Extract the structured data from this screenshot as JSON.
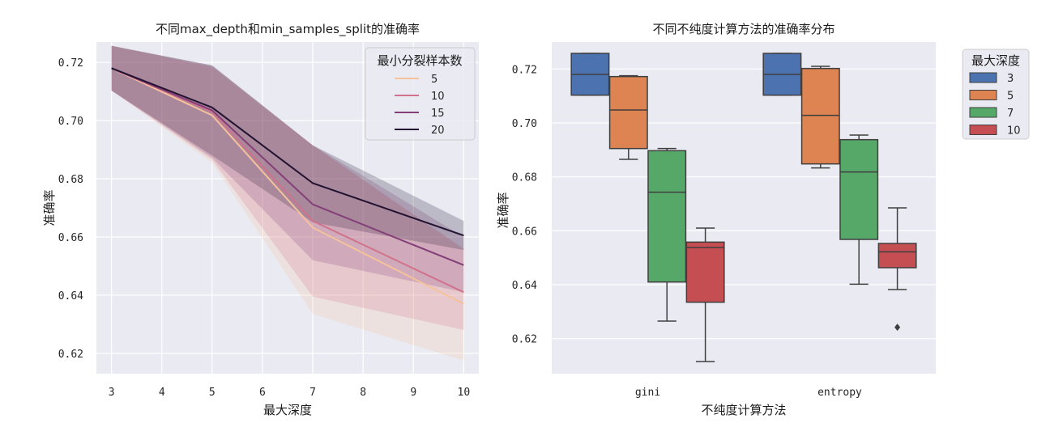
{
  "chart_data": [
    {
      "type": "line",
      "title": "不同max_depth和min_samples_split的准确率",
      "xlabel": "最大深度",
      "ylabel": "准确率",
      "xlim": [
        2.7,
        10.3
      ],
      "ylim": [
        0.613,
        0.727
      ],
      "xticks": [
        "3",
        "4",
        "5",
        "6",
        "7",
        "8",
        "9",
        "10"
      ],
      "yticks": [
        "0.62",
        "0.64",
        "0.66",
        "0.68",
        "0.70",
        "0.72"
      ],
      "x": [
        3,
        5,
        7,
        10
      ],
      "legend": {
        "title": "最小分裂样本数",
        "position": "upper right"
      },
      "series": [
        {
          "name": "5",
          "color": "#f6c29b",
          "values": [
            0.718,
            0.7018,
            0.6632,
            0.637
          ],
          "ci_low": [
            0.7103,
            0.6855,
            0.6335,
            0.6175
          ],
          "ci_high": [
            0.7257,
            0.7185,
            0.6915,
            0.6555
          ]
        },
        {
          "name": "10",
          "color": "#d0728c",
          "values": [
            0.718,
            0.703,
            0.6655,
            0.641
          ],
          "ci_low": [
            0.7103,
            0.6865,
            0.6395,
            0.628
          ],
          "ci_high": [
            0.7257,
            0.7185,
            0.6915,
            0.656
          ]
        },
        {
          "name": "15",
          "color": "#843f78",
          "values": [
            0.718,
            0.7035,
            0.6712,
            0.6503
          ],
          "ci_low": [
            0.7103,
            0.6872,
            0.652,
            0.641
          ],
          "ci_high": [
            0.7257,
            0.719,
            0.6915,
            0.66
          ]
        },
        {
          "name": "20",
          "color": "#221331",
          "values": [
            0.718,
            0.7045,
            0.6785,
            0.6605
          ],
          "ci_low": [
            0.7103,
            0.688,
            0.665,
            0.6555
          ],
          "ci_high": [
            0.7257,
            0.719,
            0.6915,
            0.6655
          ]
        }
      ]
    },
    {
      "type": "box",
      "title": "不同不纯度计算方法的准确率分布",
      "xlabel": "不纯度计算方法",
      "ylabel": "准确率",
      "categories": [
        "gini",
        "entropy"
      ],
      "ylim": [
        0.607,
        0.73
      ],
      "yticks": [
        "0.62",
        "0.64",
        "0.66",
        "0.68",
        "0.70",
        "0.72"
      ],
      "legend": {
        "title": "最大深度",
        "position": "outside upper right"
      },
      "series": [
        {
          "name": "3",
          "color": "#4c72b0",
          "boxes": [
            {
              "whislo": 0.7103,
              "q1": 0.7103,
              "med": 0.718,
              "q3": 0.7258,
              "whishi": 0.7258,
              "fliers": []
            },
            {
              "whislo": 0.7103,
              "q1": 0.7103,
              "med": 0.718,
              "q3": 0.7258,
              "whishi": 0.7258,
              "fliers": []
            }
          ]
        },
        {
          "name": "5",
          "color": "#dd8452",
          "boxes": [
            {
              "whislo": 0.6865,
              "q1": 0.6905,
              "med": 0.7048,
              "q3": 0.7172,
              "whishi": 0.7175,
              "fliers": []
            },
            {
              "whislo": 0.6833,
              "q1": 0.6848,
              "med": 0.7028,
              "q3": 0.7202,
              "whishi": 0.721,
              "fliers": []
            }
          ]
        },
        {
          "name": "7",
          "color": "#55a868",
          "boxes": [
            {
              "whislo": 0.6265,
              "q1": 0.641,
              "med": 0.6743,
              "q3": 0.6897,
              "whishi": 0.6905,
              "fliers": []
            },
            {
              "whislo": 0.6402,
              "q1": 0.6568,
              "med": 0.6818,
              "q3": 0.6938,
              "whishi": 0.6955,
              "fliers": []
            }
          ]
        },
        {
          "name": "10",
          "color": "#c44e52",
          "boxes": [
            {
              "whislo": 0.6115,
              "q1": 0.6335,
              "med": 0.6538,
              "q3": 0.6558,
              "whishi": 0.661,
              "fliers": []
            },
            {
              "whislo": 0.6382,
              "q1": 0.6463,
              "med": 0.6522,
              "q3": 0.6553,
              "whishi": 0.6685,
              "fliers": [
                0.6242
              ]
            }
          ]
        }
      ]
    }
  ]
}
